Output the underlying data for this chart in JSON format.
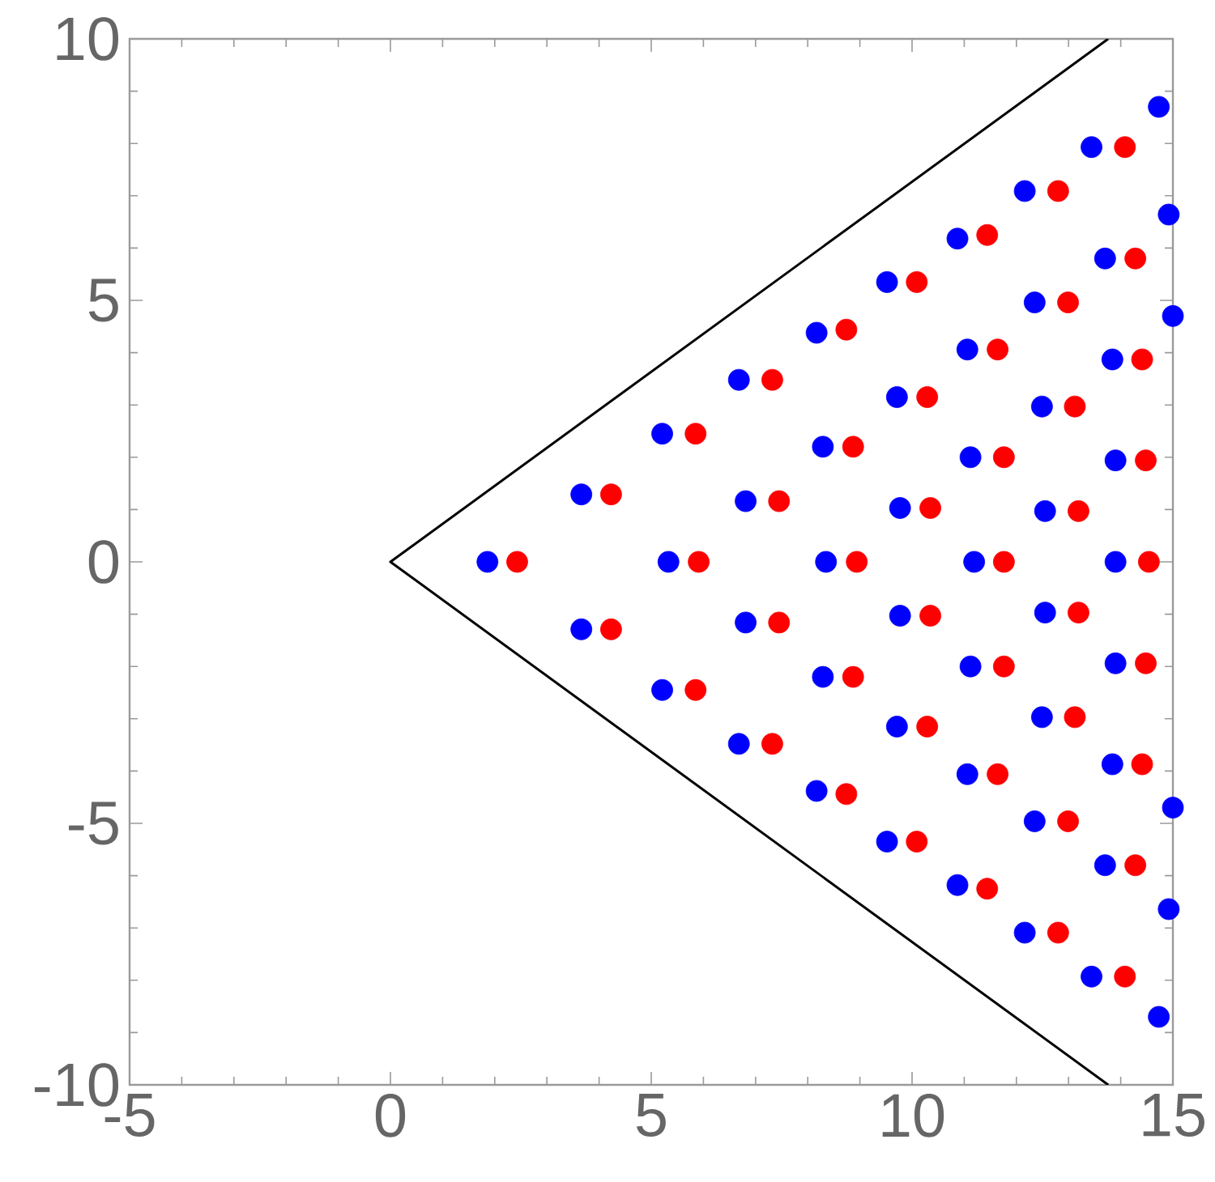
{
  "chart_data": {
    "type": "scatter",
    "xlim": [
      -5,
      15
    ],
    "ylim": [
      -10,
      10
    ],
    "xticks": [
      -5,
      0,
      5,
      10,
      15
    ],
    "yticks": [
      -10,
      -5,
      0,
      5,
      10
    ],
    "series": [
      {
        "marker": "circle",
        "color": "#0000ff",
        "x": [
          1.86,
          5.33,
          8.35,
          11.19,
          13.9,
          3.66,
          5.21,
          6.68,
          8.17,
          9.52,
          10.87,
          12.16,
          13.44,
          14.73,
          6.81,
          8.29,
          9.71,
          11.06,
          12.35,
          13.7,
          14.92,
          9.77,
          11.12,
          12.49,
          13.84,
          15.0,
          12.55,
          13.9,
          3.66,
          5.21,
          6.68,
          8.17,
          9.52,
          10.87,
          12.16,
          13.44,
          14.73,
          6.81,
          8.29,
          9.71,
          11.06,
          12.35,
          13.7,
          14.92,
          9.77,
          11.12,
          12.49,
          13.84,
          15.0,
          12.55,
          13.9
        ],
        "values": [
          0,
          0,
          0,
          0,
          0,
          1.29,
          2.45,
          3.48,
          4.38,
          5.35,
          6.18,
          7.09,
          7.93,
          8.7,
          1.16,
          2.2,
          3.15,
          4.06,
          4.96,
          5.8,
          6.64,
          1.03,
          2.0,
          2.97,
          3.87,
          4.7,
          0.97,
          1.94,
          -1.29,
          -2.45,
          -3.48,
          -4.38,
          -5.35,
          -6.18,
          -7.09,
          -7.93,
          -8.7,
          -1.16,
          -2.2,
          -3.15,
          -4.06,
          -4.96,
          -5.8,
          -6.64,
          -1.03,
          -2.0,
          -2.97,
          -3.87,
          -4.7,
          -0.97,
          -1.94
        ]
      },
      {
        "marker": "circle",
        "color": "#ff0000",
        "x": [
          2.43,
          5.91,
          8.94,
          11.76,
          14.54,
          4.23,
          5.85,
          7.32,
          8.74,
          10.09,
          11.44,
          12.8,
          14.08,
          7.45,
          8.87,
          10.29,
          11.64,
          12.99,
          14.28,
          10.35,
          11.76,
          13.12,
          14.41,
          13.19,
          14.48,
          4.23,
          5.85,
          7.32,
          8.74,
          10.09,
          11.44,
          12.8,
          14.08,
          7.45,
          8.87,
          10.29,
          11.64,
          12.99,
          14.28,
          10.35,
          11.76,
          13.12,
          14.41,
          13.19,
          14.48
        ],
        "values": [
          0,
          0,
          0,
          0,
          0,
          1.29,
          2.45,
          3.48,
          4.44,
          5.35,
          6.25,
          7.09,
          7.93,
          1.16,
          2.2,
          3.15,
          4.06,
          4.96,
          5.8,
          1.03,
          2.0,
          2.97,
          3.87,
          0.97,
          1.94,
          -1.29,
          -2.45,
          -3.48,
          -4.44,
          -5.35,
          -6.25,
          -7.09,
          -7.93,
          -1.16,
          -2.2,
          -3.15,
          -4.06,
          -4.96,
          -5.8,
          -1.03,
          -2.0,
          -2.97,
          -3.87,
          -0.97,
          -1.94
        ]
      },
      {
        "type": "line",
        "marker": "none",
        "color": "#000000",
        "x": [
          13.76,
          0,
          13.76
        ],
        "values": [
          10,
          0,
          -10
        ]
      }
    ]
  }
}
